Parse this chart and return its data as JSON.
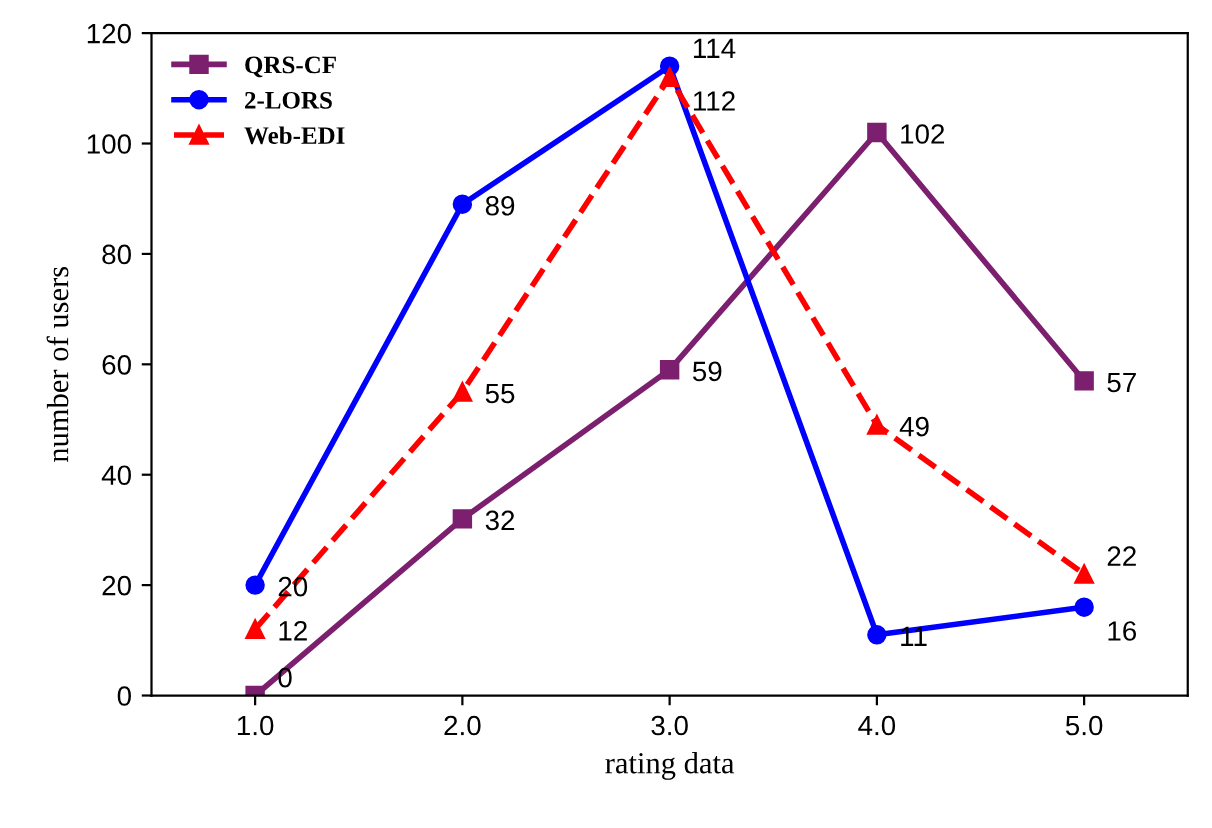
{
  "chart_data": {
    "type": "line",
    "xlabel": "rating data",
    "ylabel": "number of users",
    "categories": [
      "1.0",
      "2.0",
      "3.0",
      "4.0",
      "5.0"
    ],
    "series": [
      {
        "name": "QRS-CF",
        "color": "#7b1f6e",
        "marker": "square",
        "line_style": "solid",
        "values": [
          0,
          32,
          59,
          102,
          57
        ]
      },
      {
        "name": "2-LORS",
        "color": "#0000ff",
        "marker": "circle",
        "line_style": "solid",
        "values": [
          20,
          89,
          114,
          11,
          16
        ]
      },
      {
        "name": "Web-EDI",
        "color": "#ff0000",
        "marker": "triangle",
        "line_style": "dashed",
        "values": [
          12,
          55,
          112,
          49,
          22
        ]
      }
    ],
    "ylim": [
      0,
      120
    ],
    "yticks": [
      0,
      20,
      40,
      60,
      80,
      100,
      120
    ],
    "data_labels": true,
    "grid": false,
    "legend": "top left"
  }
}
